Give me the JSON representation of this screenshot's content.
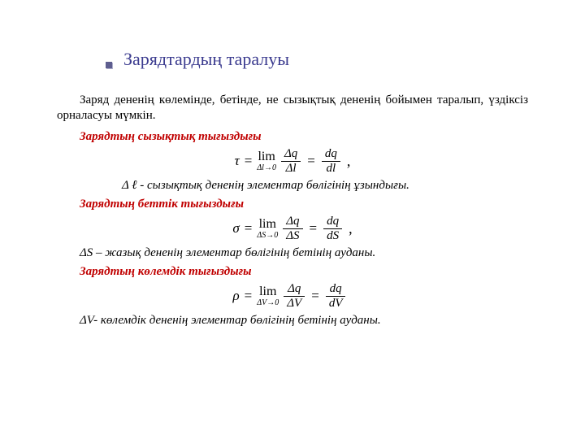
{
  "title": "Зарядтардың таралуы",
  "intro": "Заряд дененің көлемінде, бетінде, не сызықтық дененің бойымен таралып, үздіксіз орналасуы мүмкін.",
  "colors": {
    "title": "#3b3b8f",
    "subhead": "#c00000",
    "bullet_fill": "#5e5e8f",
    "bullet_shadow": "#b0b0cc",
    "text": "#000000",
    "background": "#ffffff"
  },
  "sections": [
    {
      "heading": "Зарядтың сызықтық тығыздығы",
      "formula": {
        "lhs": "τ",
        "limit_sub": "Δl→0",
        "frac1_num": "Δq",
        "frac1_den": "Δl",
        "frac2_num": "dq",
        "frac2_den": "dl",
        "trailing": ","
      },
      "caption": "Δ ℓ - сызықтық дененің элементар бөлігінің ұзындығы.",
      "caption_indent": "indent"
    },
    {
      "heading": "Зарядтың беттік тығыздығы",
      "formula": {
        "lhs": "σ",
        "limit_sub": "ΔS→0",
        "frac1_num": "Δq",
        "frac1_den": "ΔS",
        "frac2_num": "dq",
        "frac2_den": "dS",
        "trailing": ","
      },
      "caption": "ΔS – жазық дененің элементар бөлігінің бетінің ауданы.",
      "caption_indent": "small-indent"
    },
    {
      "heading": "Зарядтың көлемдік тығыздығы",
      "formula": {
        "lhs": "ρ",
        "limit_sub": "ΔV→0",
        "frac1_num": "Δq",
        "frac1_den": "ΔV",
        "frac2_num": "dq",
        "frac2_den": "dV",
        "trailing": ""
      },
      "caption": "ΔV- көлемдік дененің элементар бөлігінің бетінің ауданы.",
      "caption_indent": "small-indent"
    }
  ],
  "math_labels": {
    "lim": "lim",
    "eq": "="
  }
}
